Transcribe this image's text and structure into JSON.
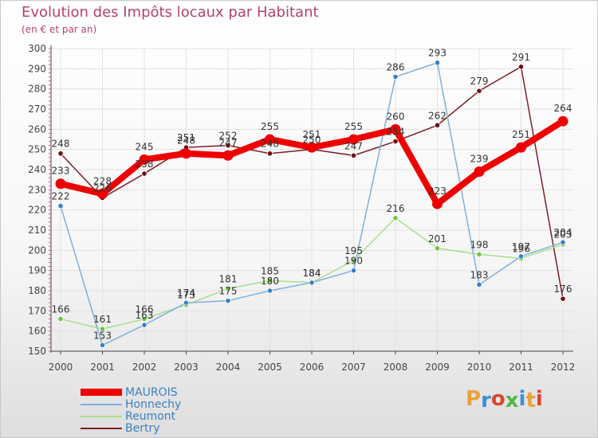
{
  "title": "Evolution des Impôts locaux par Habitant",
  "subtitle": "(en € et par an)",
  "logo_text": "Proxiti",
  "logo_letters": [
    "P",
    "r",
    "o",
    "x",
    "i",
    "t",
    "i"
  ],
  "logo_colors": [
    "#e8a33d",
    "#3d8fd6",
    "#d9472f",
    "#4fb848",
    "#3d8fd6",
    "#e8a33d",
    "#d9472f"
  ],
  "colors": {
    "title": "#b5426e",
    "axis": "#444444",
    "grid": "#e2e2e2",
    "tick_mark": "#d0508a"
  },
  "chart_data": {
    "type": "line",
    "title": "Evolution des Impôts locaux par Habitant",
    "ylabel": "(en € et par an)",
    "xlabel": "",
    "ylim": [
      150,
      300
    ],
    "yticks": [
      150,
      160,
      170,
      180,
      190,
      200,
      210,
      220,
      230,
      240,
      250,
      260,
      270,
      280,
      290,
      300
    ],
    "categories": [
      "2000",
      "2001",
      "2002",
      "2003",
      "2004",
      "2005",
      "2006",
      "2007",
      "2008",
      "2009",
      "2010",
      "2011",
      "2012"
    ],
    "grid": true,
    "legend_position": "bottom-left",
    "series": [
      {
        "name": "Bertry",
        "color": "#7a1f26",
        "marker": "#6b1018",
        "width": 1.5,
        "values": [
          248,
          226,
          238,
          251,
          252,
          248,
          250,
          247,
          254,
          262,
          279,
          291,
          176
        ],
        "labels": [
          "248",
          "226",
          "238",
          "251",
          "252",
          "248",
          "250",
          "247",
          "254",
          "262",
          "279",
          "291",
          "176"
        ]
      },
      {
        "name": "Reumont",
        "color": "#a6e08a",
        "marker": "#6dc248",
        "width": 1.5,
        "values": [
          166,
          161,
          166,
          173,
          181,
          185,
          184,
          195,
          216,
          201,
          198,
          196,
          203
        ],
        "labels": [
          "166",
          "161",
          "166",
          "173",
          "181",
          "185",
          "184",
          "195",
          "216",
          "201",
          "198",
          "196",
          "203"
        ]
      },
      {
        "name": "Honnechy",
        "color": "#7fb0da",
        "marker": "#3a80c4",
        "width": 1.5,
        "values": [
          222,
          153,
          163,
          174,
          175,
          180,
          184,
          190,
          286,
          293,
          183,
          197,
          204
        ],
        "labels": [
          "222",
          "153",
          "163",
          "174",
          "175",
          "180",
          "184",
          "190",
          "286",
          "293",
          "183",
          "197",
          "204"
        ]
      },
      {
        "name": "MAUROIS",
        "color": "#ee0000",
        "marker": "#ee0000",
        "width": 8,
        "values": [
          233,
          228,
          245,
          248,
          247,
          255,
          251,
          255,
          260,
          223,
          239,
          251,
          264
        ],
        "labels": [
          "233",
          "228",
          "245",
          "248",
          "247",
          "255",
          "251",
          "255",
          "260",
          "223",
          "239",
          "251",
          "264"
        ]
      }
    ]
  },
  "legend": [
    {
      "name": "MAUROIS",
      "color": "#ee0000",
      "text_color": "#3a80c4"
    },
    {
      "name": "Honnechy",
      "color": "#7fb0da",
      "text_color": "#3a80c4"
    },
    {
      "name": "Reumont",
      "color": "#a6e08a",
      "text_color": "#3a80c4"
    },
    {
      "name": "Bertry",
      "color": "#7a1f26",
      "text_color": "#3a80c4"
    }
  ]
}
